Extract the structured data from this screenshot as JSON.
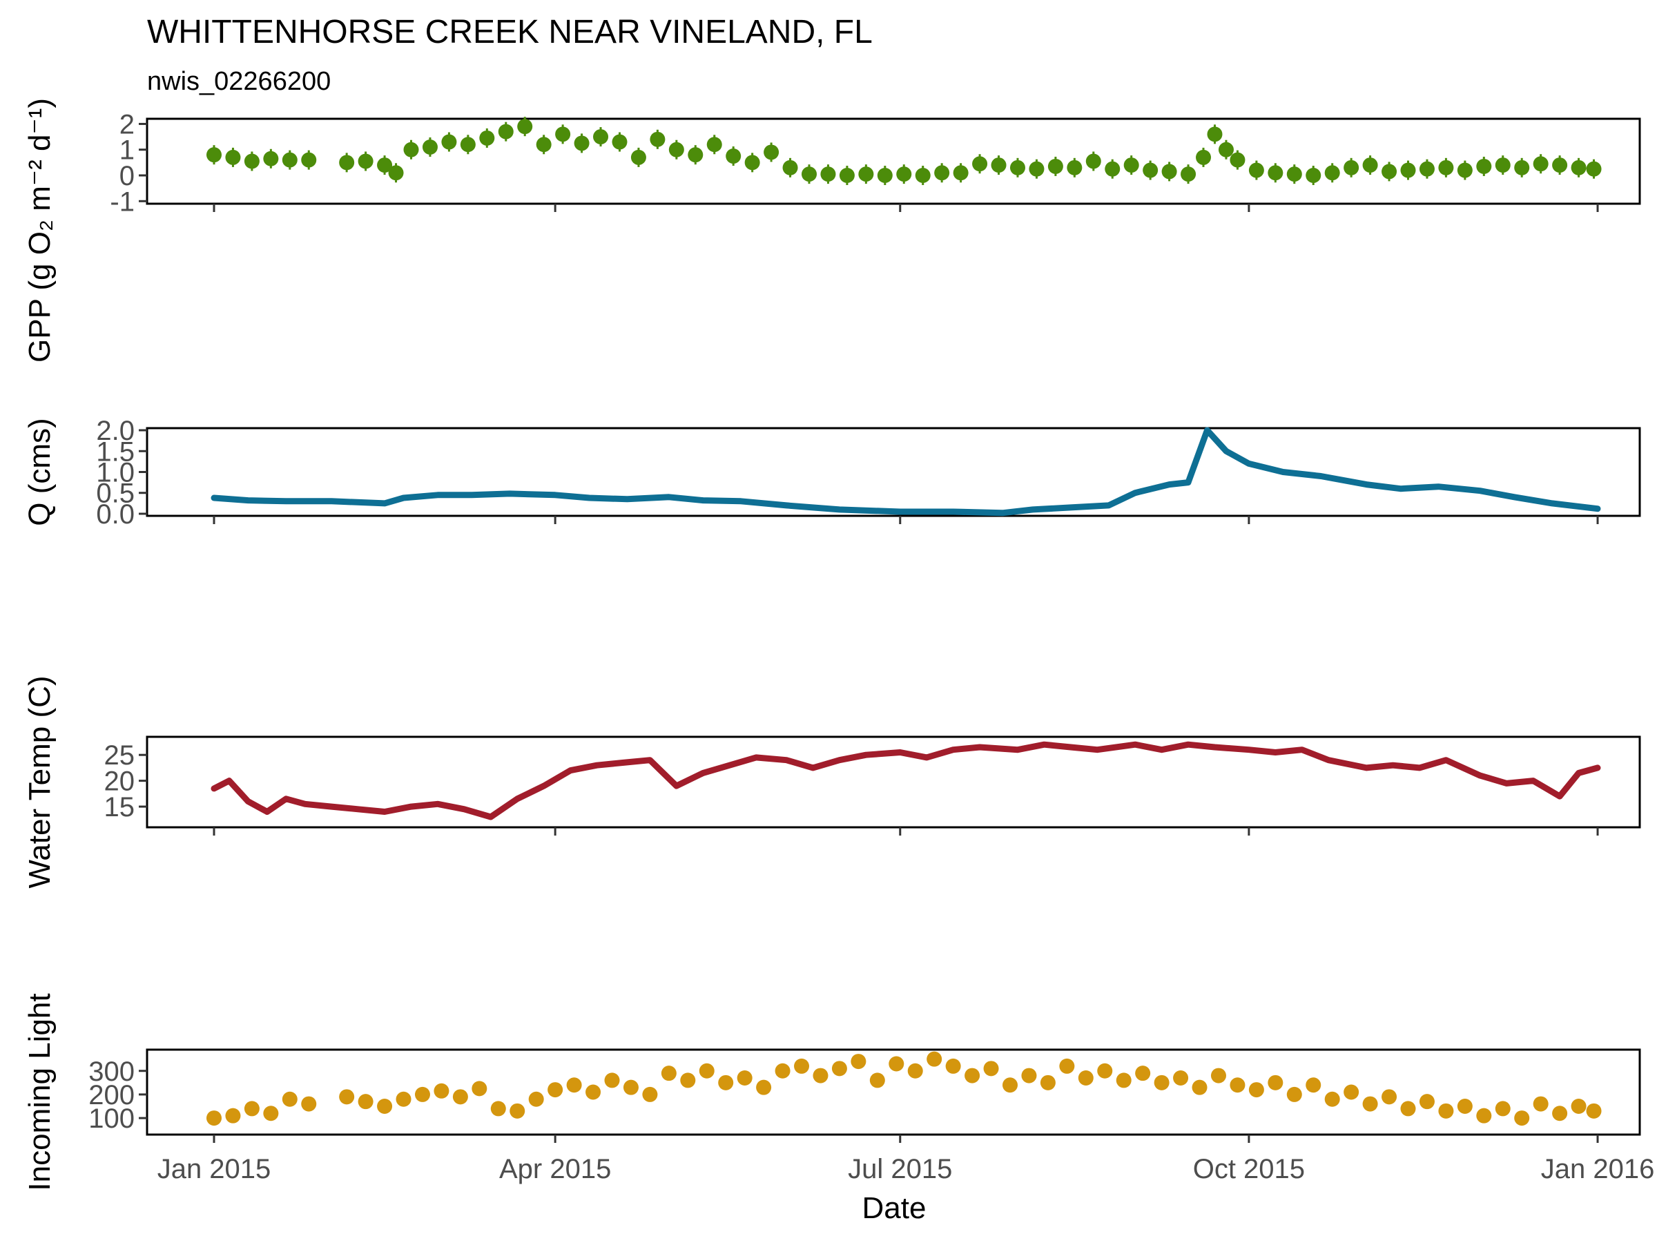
{
  "chart_data": {
    "type": "multi-panel time series",
    "title": "WHITTENHORSE CREEK NEAR VINELAND, FL",
    "subtitle": "nwis_02266200",
    "xlabel": "Date",
    "x_range": [
      "2015-01-01",
      "2016-01-03"
    ],
    "x_ticks": [
      {
        "date": "2015-01-01",
        "label": "Jan 2015"
      },
      {
        "date": "2015-04-01",
        "label": "Apr 2015"
      },
      {
        "date": "2015-07-01",
        "label": "Jul 2015"
      },
      {
        "date": "2015-10-01",
        "label": "Oct 2015"
      },
      {
        "date": "2016-01-01",
        "label": "Jan 2016"
      }
    ],
    "panels": [
      {
        "id": "gpp",
        "type": "scatter",
        "ylabel": "GPP (g  O₂ m⁻² d⁻¹)",
        "ylim": [
          -1.1,
          2.2
        ],
        "yticks": [
          -1,
          0,
          1,
          2
        ],
        "color": "#4c8c0a",
        "points": [
          [
            "2015-01-01",
            0.8
          ],
          [
            "2015-01-06",
            0.7
          ],
          [
            "2015-01-11",
            0.55
          ],
          [
            "2015-01-16",
            0.65
          ],
          [
            "2015-01-21",
            0.6
          ],
          [
            "2015-01-26",
            0.6
          ],
          [
            "2015-02-05",
            0.5
          ],
          [
            "2015-02-10",
            0.55
          ],
          [
            "2015-02-15",
            0.4
          ],
          [
            "2015-02-18",
            0.1
          ],
          [
            "2015-02-22",
            1.0
          ],
          [
            "2015-02-27",
            1.1
          ],
          [
            "2015-03-04",
            1.3
          ],
          [
            "2015-03-09",
            1.2
          ],
          [
            "2015-03-14",
            1.45
          ],
          [
            "2015-03-19",
            1.7
          ],
          [
            "2015-03-24",
            1.9
          ],
          [
            "2015-03-29",
            1.2
          ],
          [
            "2015-04-03",
            1.6
          ],
          [
            "2015-04-08",
            1.25
          ],
          [
            "2015-04-13",
            1.5
          ],
          [
            "2015-04-18",
            1.3
          ],
          [
            "2015-04-23",
            0.7
          ],
          [
            "2015-04-28",
            1.4
          ],
          [
            "2015-05-03",
            1.0
          ],
          [
            "2015-05-08",
            0.8
          ],
          [
            "2015-05-13",
            1.2
          ],
          [
            "2015-05-18",
            0.75
          ],
          [
            "2015-05-23",
            0.5
          ],
          [
            "2015-05-28",
            0.9
          ],
          [
            "2015-06-02",
            0.3
          ],
          [
            "2015-06-07",
            0.05
          ],
          [
            "2015-06-12",
            0.05
          ],
          [
            "2015-06-17",
            0.0
          ],
          [
            "2015-06-22",
            0.05
          ],
          [
            "2015-06-27",
            0.0
          ],
          [
            "2015-07-02",
            0.05
          ],
          [
            "2015-07-07",
            0.0
          ],
          [
            "2015-07-12",
            0.1
          ],
          [
            "2015-07-17",
            0.1
          ],
          [
            "2015-07-22",
            0.45
          ],
          [
            "2015-07-27",
            0.4
          ],
          [
            "2015-08-01",
            0.3
          ],
          [
            "2015-08-06",
            0.25
          ],
          [
            "2015-08-11",
            0.35
          ],
          [
            "2015-08-16",
            0.3
          ],
          [
            "2015-08-21",
            0.55
          ],
          [
            "2015-08-26",
            0.25
          ],
          [
            "2015-08-31",
            0.4
          ],
          [
            "2015-09-05",
            0.2
          ],
          [
            "2015-09-10",
            0.15
          ],
          [
            "2015-09-15",
            0.05
          ],
          [
            "2015-09-19",
            0.7
          ],
          [
            "2015-09-22",
            1.6
          ],
          [
            "2015-09-25",
            1.0
          ],
          [
            "2015-09-28",
            0.6
          ],
          [
            "2015-10-03",
            0.2
          ],
          [
            "2015-10-08",
            0.1
          ],
          [
            "2015-10-13",
            0.05
          ],
          [
            "2015-10-18",
            0.0
          ],
          [
            "2015-10-23",
            0.1
          ],
          [
            "2015-10-28",
            0.3
          ],
          [
            "2015-11-02",
            0.4
          ],
          [
            "2015-11-07",
            0.15
          ],
          [
            "2015-11-12",
            0.2
          ],
          [
            "2015-11-17",
            0.25
          ],
          [
            "2015-11-22",
            0.3
          ],
          [
            "2015-11-27",
            0.2
          ],
          [
            "2015-12-02",
            0.35
          ],
          [
            "2015-12-07",
            0.4
          ],
          [
            "2015-12-12",
            0.3
          ],
          [
            "2015-12-17",
            0.45
          ],
          [
            "2015-12-22",
            0.4
          ],
          [
            "2015-12-27",
            0.3
          ],
          [
            "2015-12-31",
            0.25
          ]
        ]
      },
      {
        "id": "q",
        "type": "line",
        "ylabel": "Q (cms)",
        "ylim": [
          -0.05,
          2.05
        ],
        "yticks": [
          0.0,
          0.5,
          1.0,
          1.5,
          2.0
        ],
        "ytick_labels": [
          "0.0",
          "0.5",
          "1.0",
          "1.5",
          "2.0"
        ],
        "color": "#0e6f94",
        "points": [
          [
            "2015-01-01",
            0.38
          ],
          [
            "2015-01-10",
            0.32
          ],
          [
            "2015-01-20",
            0.3
          ],
          [
            "2015-02-01",
            0.3
          ],
          [
            "2015-02-15",
            0.25
          ],
          [
            "2015-02-20",
            0.38
          ],
          [
            "2015-03-01",
            0.45
          ],
          [
            "2015-03-10",
            0.45
          ],
          [
            "2015-03-20",
            0.48
          ],
          [
            "2015-04-01",
            0.45
          ],
          [
            "2015-04-10",
            0.38
          ],
          [
            "2015-04-20",
            0.35
          ],
          [
            "2015-05-01",
            0.4
          ],
          [
            "2015-05-10",
            0.32
          ],
          [
            "2015-05-20",
            0.3
          ],
          [
            "2015-06-01",
            0.2
          ],
          [
            "2015-06-15",
            0.1
          ],
          [
            "2015-07-01",
            0.05
          ],
          [
            "2015-07-15",
            0.05
          ],
          [
            "2015-07-28",
            0.02
          ],
          [
            "2015-08-05",
            0.1
          ],
          [
            "2015-08-15",
            0.15
          ],
          [
            "2015-08-25",
            0.2
          ],
          [
            "2015-09-01",
            0.5
          ],
          [
            "2015-09-10",
            0.7
          ],
          [
            "2015-09-15",
            0.75
          ],
          [
            "2015-09-20",
            2.0
          ],
          [
            "2015-09-25",
            1.5
          ],
          [
            "2015-10-01",
            1.2
          ],
          [
            "2015-10-10",
            1.0
          ],
          [
            "2015-10-20",
            0.9
          ],
          [
            "2015-11-01",
            0.7
          ],
          [
            "2015-11-10",
            0.6
          ],
          [
            "2015-11-20",
            0.65
          ],
          [
            "2015-12-01",
            0.55
          ],
          [
            "2015-12-10",
            0.4
          ],
          [
            "2015-12-20",
            0.25
          ],
          [
            "2016-01-01",
            0.12
          ]
        ]
      },
      {
        "id": "wt",
        "type": "line",
        "ylabel": "Water Temp (C)",
        "ylim": [
          11,
          28.5
        ],
        "yticks": [
          15,
          20,
          25
        ],
        "color": "#a11d2b",
        "points": [
          [
            "2015-01-01",
            18.5
          ],
          [
            "2015-01-05",
            20.0
          ],
          [
            "2015-01-10",
            16.0
          ],
          [
            "2015-01-15",
            14.0
          ],
          [
            "2015-01-20",
            16.5
          ],
          [
            "2015-01-25",
            15.5
          ],
          [
            "2015-02-01",
            15.0
          ],
          [
            "2015-02-08",
            14.5
          ],
          [
            "2015-02-15",
            14.0
          ],
          [
            "2015-02-22",
            15.0
          ],
          [
            "2015-03-01",
            15.5
          ],
          [
            "2015-03-08",
            14.5
          ],
          [
            "2015-03-15",
            13.0
          ],
          [
            "2015-03-22",
            16.5
          ],
          [
            "2015-03-29",
            19.0
          ],
          [
            "2015-04-05",
            22.0
          ],
          [
            "2015-04-12",
            23.0
          ],
          [
            "2015-04-19",
            23.5
          ],
          [
            "2015-04-26",
            24.0
          ],
          [
            "2015-05-03",
            19.0
          ],
          [
            "2015-05-10",
            21.5
          ],
          [
            "2015-05-17",
            23.0
          ],
          [
            "2015-05-24",
            24.5
          ],
          [
            "2015-06-01",
            24.0
          ],
          [
            "2015-06-08",
            22.5
          ],
          [
            "2015-06-15",
            24.0
          ],
          [
            "2015-06-22",
            25.0
          ],
          [
            "2015-07-01",
            25.5
          ],
          [
            "2015-07-08",
            24.5
          ],
          [
            "2015-07-15",
            26.0
          ],
          [
            "2015-07-22",
            26.5
          ],
          [
            "2015-08-01",
            26.0
          ],
          [
            "2015-08-08",
            27.0
          ],
          [
            "2015-08-15",
            26.5
          ],
          [
            "2015-08-22",
            26.0
          ],
          [
            "2015-09-01",
            27.0
          ],
          [
            "2015-09-08",
            26.0
          ],
          [
            "2015-09-15",
            27.0
          ],
          [
            "2015-09-22",
            26.5
          ],
          [
            "2015-10-01",
            26.0
          ],
          [
            "2015-10-08",
            25.5
          ],
          [
            "2015-10-15",
            26.0
          ],
          [
            "2015-10-22",
            24.0
          ],
          [
            "2015-11-01",
            22.5
          ],
          [
            "2015-11-08",
            23.0
          ],
          [
            "2015-11-15",
            22.5
          ],
          [
            "2015-11-22",
            24.0
          ],
          [
            "2015-12-01",
            21.0
          ],
          [
            "2015-12-08",
            19.5
          ],
          [
            "2015-12-15",
            20.0
          ],
          [
            "2015-12-22",
            17.0
          ],
          [
            "2015-12-27",
            21.5
          ],
          [
            "2016-01-01",
            22.5
          ]
        ]
      },
      {
        "id": "light",
        "type": "scatter",
        "ylabel": "Incoming Light",
        "ylim": [
          30,
          390
        ],
        "yticks": [
          100,
          200,
          300
        ],
        "color": "#d4960e",
        "points": [
          [
            "2015-01-01",
            100
          ],
          [
            "2015-01-06",
            110
          ],
          [
            "2015-01-11",
            140
          ],
          [
            "2015-01-16",
            120
          ],
          [
            "2015-01-21",
            180
          ],
          [
            "2015-01-26",
            160
          ],
          [
            "2015-02-05",
            190
          ],
          [
            "2015-02-10",
            170
          ],
          [
            "2015-02-15",
            150
          ],
          [
            "2015-02-20",
            180
          ],
          [
            "2015-02-25",
            200
          ],
          [
            "2015-03-02",
            215
          ],
          [
            "2015-03-07",
            190
          ],
          [
            "2015-03-12",
            225
          ],
          [
            "2015-03-17",
            140
          ],
          [
            "2015-03-22",
            130
          ],
          [
            "2015-03-27",
            180
          ],
          [
            "2015-04-01",
            220
          ],
          [
            "2015-04-06",
            240
          ],
          [
            "2015-04-11",
            210
          ],
          [
            "2015-04-16",
            260
          ],
          [
            "2015-04-21",
            230
          ],
          [
            "2015-04-26",
            200
          ],
          [
            "2015-05-01",
            290
          ],
          [
            "2015-05-06",
            260
          ],
          [
            "2015-05-11",
            300
          ],
          [
            "2015-05-16",
            250
          ],
          [
            "2015-05-21",
            270
          ],
          [
            "2015-05-26",
            230
          ],
          [
            "2015-05-31",
            300
          ],
          [
            "2015-06-05",
            320
          ],
          [
            "2015-06-10",
            280
          ],
          [
            "2015-06-15",
            310
          ],
          [
            "2015-06-20",
            340
          ],
          [
            "2015-06-25",
            260
          ],
          [
            "2015-06-30",
            330
          ],
          [
            "2015-07-05",
            300
          ],
          [
            "2015-07-10",
            350
          ],
          [
            "2015-07-15",
            320
          ],
          [
            "2015-07-20",
            280
          ],
          [
            "2015-07-25",
            310
          ],
          [
            "2015-07-30",
            240
          ],
          [
            "2015-08-04",
            280
          ],
          [
            "2015-08-09",
            250
          ],
          [
            "2015-08-14",
            320
          ],
          [
            "2015-08-19",
            270
          ],
          [
            "2015-08-24",
            300
          ],
          [
            "2015-08-29",
            260
          ],
          [
            "2015-09-03",
            290
          ],
          [
            "2015-09-08",
            250
          ],
          [
            "2015-09-13",
            270
          ],
          [
            "2015-09-18",
            230
          ],
          [
            "2015-09-23",
            280
          ],
          [
            "2015-09-28",
            240
          ],
          [
            "2015-10-03",
            220
          ],
          [
            "2015-10-08",
            250
          ],
          [
            "2015-10-13",
            200
          ],
          [
            "2015-10-18",
            240
          ],
          [
            "2015-10-23",
            180
          ],
          [
            "2015-10-28",
            210
          ],
          [
            "2015-11-02",
            160
          ],
          [
            "2015-11-07",
            190
          ],
          [
            "2015-11-12",
            140
          ],
          [
            "2015-11-17",
            170
          ],
          [
            "2015-11-22",
            130
          ],
          [
            "2015-11-27",
            150
          ],
          [
            "2015-12-02",
            110
          ],
          [
            "2015-12-07",
            140
          ],
          [
            "2015-12-12",
            100
          ],
          [
            "2015-12-17",
            160
          ],
          [
            "2015-12-22",
            120
          ],
          [
            "2015-12-27",
            150
          ],
          [
            "2015-12-31",
            130
          ]
        ]
      }
    ]
  }
}
